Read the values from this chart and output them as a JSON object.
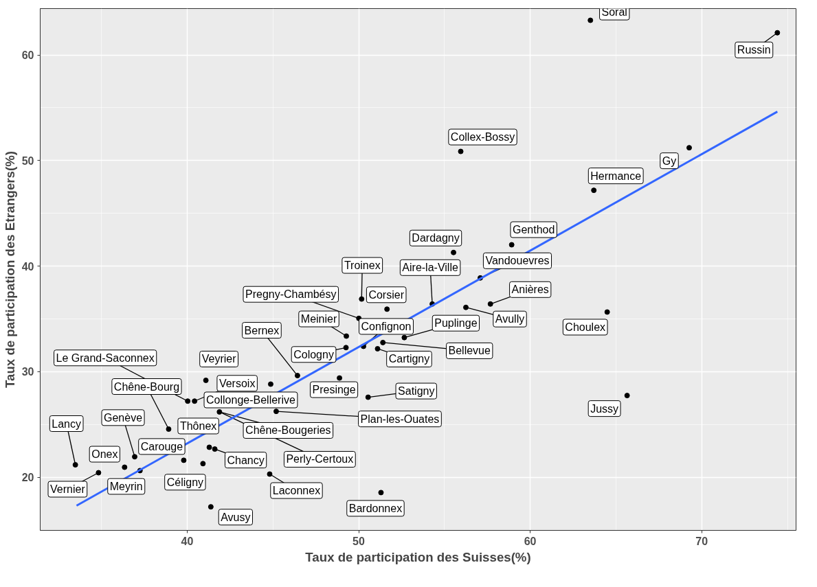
{
  "chart_data": {
    "type": "scatter",
    "xlabel": "Taux de participation des Suisses(%)",
    "ylabel": "Taux de participation des Etrangers(%)",
    "xlim": [
      31.43,
      75.5
    ],
    "ylim": [
      14.97,
      64.39
    ],
    "xticks": [
      40,
      50,
      60,
      70
    ],
    "yticks": [
      20,
      30,
      40,
      50,
      60
    ],
    "grid": true,
    "marker": "circle",
    "series": [
      {
        "color": "#000000",
        "x": [
          33.48,
          34.83,
          36.35,
          36.94,
          37.25,
          39.8,
          40.92,
          38.92,
          40.03,
          40.43,
          41.09,
          41.88,
          41.29,
          41.61,
          41.38,
          44.81,
          44.87,
          46.43,
          45.19,
          48.88,
          50.55,
          49.26,
          49.28,
          50.28,
          51.1,
          51.41,
          52.66,
          50.01,
          50.17,
          51.65,
          54.29,
          56.25,
          57.68,
          57.09,
          55.53,
          58.92,
          55.95,
          63.71,
          69.27,
          63.51,
          74.41,
          64.49,
          65.65,
          51.3
        ],
        "values": [
          21.18,
          20.43,
          20.95,
          21.94,
          20.63,
          21.61,
          21.29,
          24.56,
          27.21,
          27.21,
          29.18,
          26.19,
          22.84,
          22.67,
          17.2,
          20.3,
          28.82,
          29.63,
          26.24,
          29.4,
          27.58,
          32.28,
          33.37,
          32.4,
          32.17,
          32.76,
          33.23,
          35.05,
          36.88,
          35.92,
          36.41,
          36.09,
          36.41,
          38.88,
          41.29,
          42.02,
          50.86,
          47.18,
          51.21,
          63.28,
          62.1,
          35.65,
          27.74,
          18.55
        ]
      },
      {
        "type": "line",
        "color": "#3366ff",
        "marker": "none",
        "x": [
          33.55,
          74.41
        ],
        "values": [
          17.31,
          54.63
        ]
      }
    ],
    "annotations": [
      {
        "text": "Soral",
        "x": 63.51,
        "y": 63.28
      },
      {
        "text": "Russin",
        "x": 74.41,
        "y": 62.1
      },
      {
        "text": "Collex-Bossy",
        "x": 55.95,
        "y": 50.86
      },
      {
        "text": "Gy",
        "x": 69.27,
        "y": 51.21
      },
      {
        "text": "Hermance",
        "x": 63.71,
        "y": 47.18
      },
      {
        "text": "Dardagny",
        "x": 55.53,
        "y": 41.29
      },
      {
        "text": "Genthod",
        "x": 58.92,
        "y": 42.02
      },
      {
        "text": "Troinex",
        "x": 50.17,
        "y": 36.88
      },
      {
        "text": "Aire-la-Ville",
        "x": 54.29,
        "y": 36.41
      },
      {
        "text": "Vandouevres",
        "x": 57.09,
        "y": 38.88
      },
      {
        "text": "Corsier",
        "x": 51.65,
        "y": 35.92
      },
      {
        "text": "Anières",
        "x": 57.68,
        "y": 36.41
      },
      {
        "text": "Pregny-Chambésy",
        "x": 50.01,
        "y": 35.05
      },
      {
        "text": "Meinier",
        "x": 49.28,
        "y": 33.37
      },
      {
        "text": "Confignon",
        "x": 50.28,
        "y": 32.4
      },
      {
        "text": "Puplinge",
        "x": 52.66,
        "y": 33.23
      },
      {
        "text": "Avully",
        "x": 56.25,
        "y": 36.09
      },
      {
        "text": "Choulex",
        "x": 64.49,
        "y": 35.65
      },
      {
        "text": "Bernex",
        "x": 46.43,
        "y": 29.63
      },
      {
        "text": "Bellevue",
        "x": 51.41,
        "y": 32.76
      },
      {
        "text": "Cartigny",
        "x": 51.1,
        "y": 32.17
      },
      {
        "text": "Le Grand-Saconnex",
        "x": 40.03,
        "y": 27.21
      },
      {
        "text": "Veyrier",
        "x": 41.09,
        "y": 29.18
      },
      {
        "text": "Cologny",
        "x": 49.26,
        "y": 32.28
      },
      {
        "text": "Chêne-Bourg",
        "x": 38.92,
        "y": 24.56
      },
      {
        "text": "Collonge-Bellerive",
        "x": 44.87,
        "y": 28.82
      },
      {
        "text": "Versoix",
        "x": 40.43,
        "y": 27.21
      },
      {
        "text": "Presinge",
        "x": 48.88,
        "y": 29.4
      },
      {
        "text": "Satigny",
        "x": 50.55,
        "y": 27.58
      },
      {
        "text": "Jussy",
        "x": 65.65,
        "y": 27.74
      },
      {
        "text": "Plan-les-Ouates",
        "x": 45.19,
        "y": 26.24
      },
      {
        "text": "Lancy",
        "x": 33.48,
        "y": 21.18
      },
      {
        "text": "Genève",
        "x": 36.94,
        "y": 21.94
      },
      {
        "text": "Thônex",
        "x": 41.29,
        "y": 22.84
      },
      {
        "text": "Chêne-Bougeries",
        "x": 41.88,
        "y": 26.19
      },
      {
        "text": "Carouge",
        "x": 39.8,
        "y": 21.61
      },
      {
        "text": "Onex",
        "x": 36.35,
        "y": 20.95
      },
      {
        "text": "Chancy",
        "x": 41.61,
        "y": 22.67
      },
      {
        "text": "Perly-Certoux",
        "x": 41.88,
        "y": 26.19
      },
      {
        "text": "Vernier",
        "x": 34.83,
        "y": 20.43
      },
      {
        "text": "Meyrin",
        "x": 37.25,
        "y": 20.63
      },
      {
        "text": "Céligny",
        "x": 40.92,
        "y": 21.29
      },
      {
        "text": "Laconnex",
        "x": 44.81,
        "y": 20.3
      },
      {
        "text": "Bardonnex",
        "x": 51.3,
        "y": 18.55
      },
      {
        "text": "Avusy",
        "x": 41.38,
        "y": 17.2
      }
    ]
  }
}
